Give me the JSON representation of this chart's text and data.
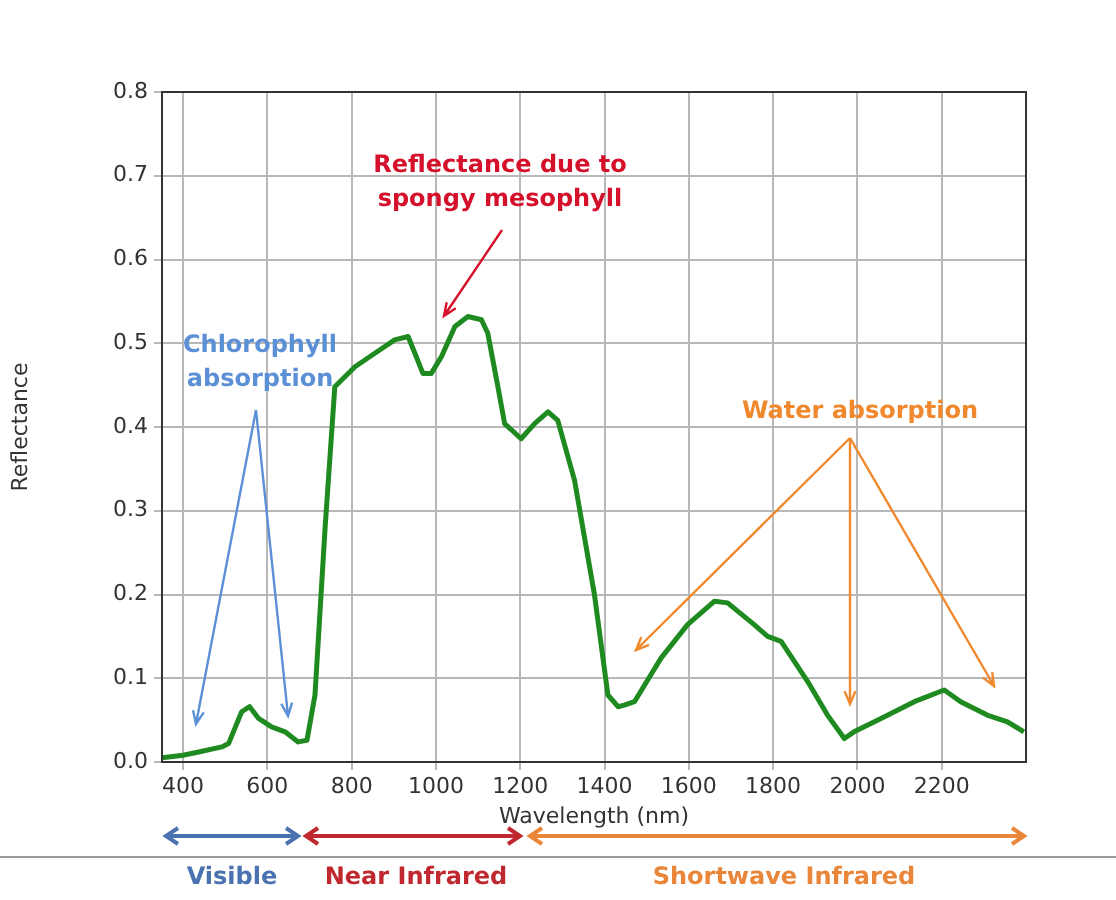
{
  "chart_data": {
    "type": "line",
    "xlabel": "Wavelength (nm)",
    "ylabel": "Reflectance",
    "xlim": [
      350,
      2400
    ],
    "xticks": [
      400,
      600,
      800,
      1000,
      1200,
      1400,
      1600,
      1800,
      2000,
      2200
    ],
    "ylim": [
      0,
      0.8
    ],
    "yticks": [
      {
        "value": 0,
        "label": "0.0"
      },
      0.1,
      0.2,
      0.3,
      0.4,
      0.5,
      0.6,
      0.7,
      0.8
    ],
    "grid": true,
    "legend": false,
    "marker": "none",
    "line_style": "solid",
    "series": [
      {
        "color": "#1f8a1f",
        "x": [
          350,
          400,
          437,
          492,
          508,
          539,
          558,
          579,
          610,
          642,
          673,
          694,
          713,
          737,
          760,
          808,
          855,
          902,
          934,
          950,
          969,
          989,
          1013,
          1045,
          1076,
          1108,
          1123,
          1147,
          1163,
          1202,
          1234,
          1266,
          1289,
          1329,
          1376,
          1408,
          1432,
          1447,
          1471,
          1534,
          1597,
          1661,
          1692,
          1755,
          1787,
          1819,
          1882,
          1929,
          1969,
          1992,
          2056,
          2135,
          2206,
          2245,
          2308,
          2356,
          2395
        ],
        "values": [
          0.005,
          0.008,
          0.012,
          0.018,
          0.022,
          0.06,
          0.066,
          0.052,
          0.042,
          0.036,
          0.024,
          0.026,
          0.08,
          0.28,
          0.448,
          0.472,
          0.488,
          0.504,
          0.508,
          0.488,
          0.464,
          0.464,
          0.484,
          0.52,
          0.532,
          0.528,
          0.512,
          0.448,
          0.404,
          0.386,
          0.404,
          0.418,
          0.408,
          0.336,
          0.2,
          0.08,
          0.066,
          0.068,
          0.072,
          0.124,
          0.164,
          0.192,
          0.19,
          0.164,
          0.15,
          0.144,
          0.096,
          0.056,
          0.028,
          0.036,
          0.052,
          0.072,
          0.086,
          0.072,
          0.056,
          0.048,
          0.036
        ]
      }
    ],
    "annotations": [
      "Reflectance due to spongy mesophyll",
      "Chlorophyll absorption",
      "Water absorption",
      "Visible",
      "Near Infrared",
      "Shortwave Infrared"
    ]
  }
}
